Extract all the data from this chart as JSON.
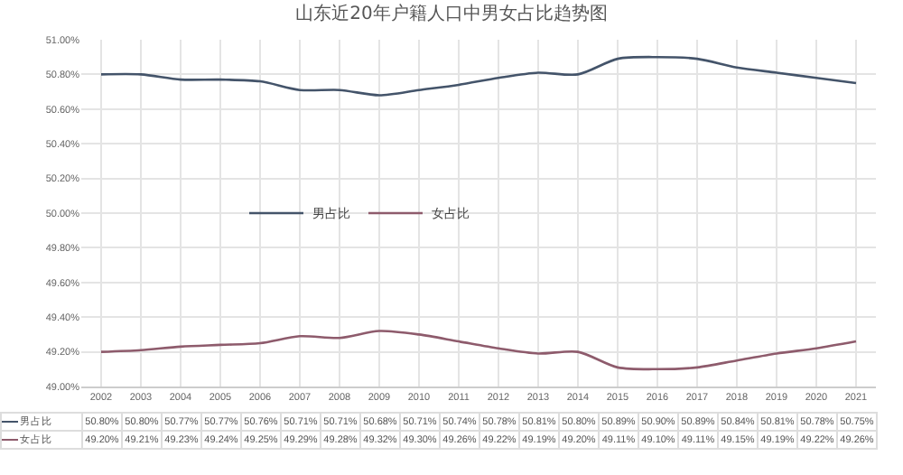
{
  "chart_data": {
    "type": "line",
    "title": "山东近20年户籍人口中男女占比趋势图",
    "categories": [
      "2002",
      "2003",
      "2004",
      "2005",
      "2006",
      "2007",
      "2008",
      "2009",
      "2010",
      "2011",
      "2012",
      "2013",
      "2014",
      "2015",
      "2016",
      "2017",
      "2018",
      "2019",
      "2020",
      "2021"
    ],
    "series": [
      {
        "name": "男占比",
        "color": "#44546a",
        "values": [
          50.8,
          50.8,
          50.77,
          50.77,
          50.76,
          50.71,
          50.71,
          50.68,
          50.71,
          50.74,
          50.78,
          50.81,
          50.8,
          50.89,
          50.9,
          50.89,
          50.84,
          50.81,
          50.78,
          50.75
        ],
        "value_labels": [
          "50.80%",
          "50.80%",
          "50.77%",
          "50.77%",
          "50.76%",
          "50.71%",
          "50.71%",
          "50.68%",
          "50.71%",
          "50.74%",
          "50.78%",
          "50.81%",
          "50.80%",
          "50.89%",
          "50.90%",
          "50.89%",
          "50.84%",
          "50.81%",
          "50.78%",
          "50.75%"
        ]
      },
      {
        "name": "女占比",
        "color": "#8e5b6c",
        "values": [
          49.2,
          49.21,
          49.23,
          49.24,
          49.25,
          49.29,
          49.28,
          49.32,
          49.3,
          49.26,
          49.22,
          49.19,
          49.2,
          49.11,
          49.1,
          49.11,
          49.15,
          49.19,
          49.22,
          49.26
        ],
        "value_labels": [
          "49.20%",
          "49.21%",
          "49.23%",
          "49.24%",
          "49.25%",
          "49.29%",
          "49.28%",
          "49.32%",
          "49.30%",
          "49.26%",
          "49.22%",
          "49.19%",
          "49.20%",
          "49.11%",
          "49.10%",
          "49.11%",
          "49.15%",
          "49.19%",
          "49.22%",
          "49.26%"
        ]
      }
    ],
    "ylim": [
      49.0,
      51.0
    ],
    "yticks": [
      {
        "value": 49.0,
        "label": "49.00%"
      },
      {
        "value": 49.2,
        "label": "49.20%"
      },
      {
        "value": 49.4,
        "label": "49.40%"
      },
      {
        "value": 49.6,
        "label": "49.60%"
      },
      {
        "value": 49.8,
        "label": "49.80%"
      },
      {
        "value": 50.0,
        "label": "50.00%"
      },
      {
        "value": 50.2,
        "label": "50.20%"
      },
      {
        "value": 50.4,
        "label": "50.40%"
      },
      {
        "value": 50.6,
        "label": "50.60%"
      },
      {
        "value": 50.8,
        "label": "50.80%"
      },
      {
        "value": 51.0,
        "label": "51.00%"
      }
    ],
    "grid": true,
    "legend": "center",
    "line_style": "solid"
  }
}
